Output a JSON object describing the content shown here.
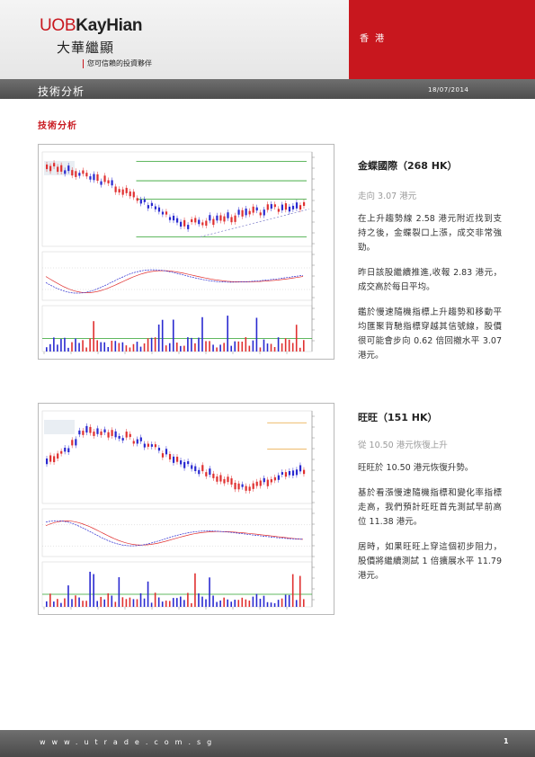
{
  "header": {
    "logo_uob": "UOB",
    "logo_kayhian": "KayHian",
    "logo_cn": "大華繼顯",
    "tagline": "您可信賴的投資夥伴",
    "region": "香 港",
    "section": "技術分析",
    "date": "18/07/2014"
  },
  "page_title": "技術分析",
  "colors": {
    "brand_red": "#c8171e",
    "bar_gray": "#5a5a5a",
    "grid_green": "#2ca02c",
    "candle_red": "#e03030",
    "candle_blue": "#2a2ad0",
    "level_orange": "#e8a33a"
  },
  "stocks": [
    {
      "title": "金蝶國際（268 HK）",
      "subtitle": "走向 3.07 港元",
      "paragraphs": [
        "在上升趨勢線 2.58 港元附近找到支持之後，金蝶裂口上漲，成交非常強勁。",
        "昨日該股繼續推進,收報 2.83 港元，成交高於每日平均。",
        "鑑於慢速隨機指標上升趨勢和移動平均匯聚背馳指標穿越其信號線，股價很可能會步向 0.62 倍回撤水平 3.07 港元。"
      ]
    },
    {
      "title": "旺旺（151 HK）",
      "subtitle": "從 10.50 港元恢復上升",
      "paragraphs": [
        "旺旺於 10.50 港元恢復升勢。",
        "基於看漲慢速隨機指標和變化率指標走高，我們預計旺旺首先測試早前高位 11.38 港元。",
        "居時，如果旺旺上穿這個初步阻力，股價將繼續測試 1 倍擴展水平 11.79 港元。"
      ]
    }
  ],
  "footer": {
    "url": "www.utrade.com.sg",
    "page": "1"
  }
}
